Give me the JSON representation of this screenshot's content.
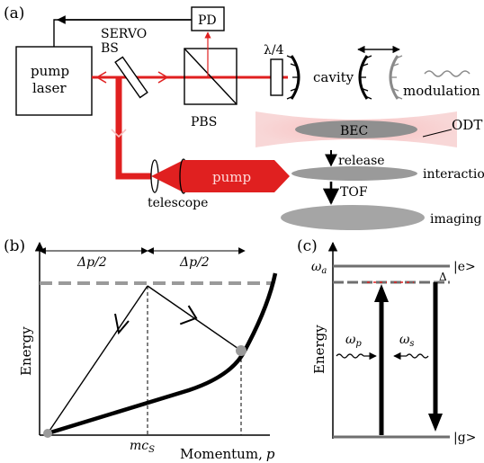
{
  "panel_a": {
    "label": "(a)",
    "servo": "SERVO",
    "pd": "PD",
    "pump_laser_line1": "pump",
    "pump_laser_line2": "laser",
    "bs": "BS",
    "pbs": "PBS",
    "lambda4": "λ/4",
    "cavity": "cavity",
    "modulation": "modulation",
    "bec": "BEC",
    "odt": "ODT",
    "release": "release",
    "interaction": "interaction",
    "tof": "TOF",
    "imaging": "imaging",
    "pump": "pump",
    "telescope": "telescope",
    "colors": {
      "beam": "#e02020",
      "odt": "#f3a5a5",
      "cloud": "#9a9a9a"
    }
  },
  "panel_b": {
    "label": "(b)",
    "dp_left": "Δp/2",
    "dp_right": "Δp/2",
    "ylabel": "Energy",
    "xlabel": "Momentum,",
    "xlabel_var": "p",
    "mcs": "mc",
    "mcs_sub": "S"
  },
  "panel_c": {
    "label": "(c)",
    "omega_a": "ω",
    "omega_a_sub": "a",
    "e_state": "|e>",
    "g_state": "|g>",
    "delta": "Δ",
    "ylabel": "Energy",
    "omega_p": "ω",
    "omega_p_sub": "p",
    "omega_s": "ω",
    "omega_s_sub": "s"
  }
}
